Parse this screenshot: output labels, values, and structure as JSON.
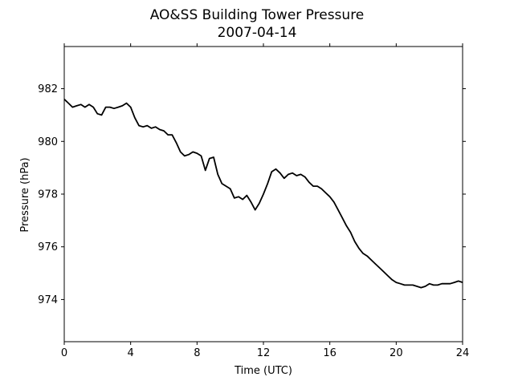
{
  "chart_data": {
    "type": "line",
    "title": "AO&SS Building Tower Pressure",
    "subtitle": "2007-04-14",
    "xlabel": "Time (UTC)",
    "ylabel": "Pressure (hPa)",
    "xlim": [
      0,
      24
    ],
    "ylim": [
      972.4,
      983.6
    ],
    "xticks": [
      0,
      4,
      8,
      12,
      16,
      20,
      24
    ],
    "yticks": [
      974,
      976,
      978,
      980,
      982
    ],
    "grid": false,
    "line_color": "#000000",
    "series": [
      {
        "x": [
          0,
          0.25,
          0.5,
          0.75,
          1.0,
          1.25,
          1.5,
          1.75,
          2.0,
          2.25,
          2.5,
          2.75,
          3.0,
          3.25,
          3.5,
          3.75,
          4.0,
          4.25,
          4.5,
          4.75,
          5.0,
          5.25,
          5.5,
          5.75,
          6.0,
          6.25,
          6.5,
          6.75,
          7.0,
          7.25,
          7.5,
          7.75,
          8.0,
          8.25,
          8.5,
          8.75,
          9.0,
          9.25,
          9.5,
          9.75,
          10.0,
          10.25,
          10.5,
          10.75,
          11.0,
          11.25,
          11.5,
          11.75,
          12.0,
          12.25,
          12.5,
          12.75,
          13.0,
          13.25,
          13.5,
          13.75,
          14.0,
          14.25,
          14.5,
          14.75,
          15.0,
          15.25,
          15.5,
          15.75,
          16.0,
          16.25,
          16.5,
          16.75,
          17.0,
          17.25,
          17.5,
          17.75,
          18.0,
          18.25,
          18.5,
          18.75,
          19.0,
          19.25,
          19.5,
          19.75,
          20.0,
          20.25,
          20.5,
          20.75,
          21.0,
          21.25,
          21.5,
          21.75,
          22.0,
          22.25,
          22.5,
          22.75,
          23.0,
          23.25,
          23.5,
          23.75,
          24.0
        ],
        "values": [
          981.6,
          981.45,
          981.3,
          981.35,
          981.4,
          981.3,
          981.4,
          981.3,
          981.05,
          981.0,
          981.3,
          981.3,
          981.25,
          981.3,
          981.35,
          981.45,
          981.3,
          980.9,
          980.6,
          980.55,
          980.6,
          980.5,
          980.55,
          980.45,
          980.4,
          980.25,
          980.25,
          979.95,
          979.6,
          979.45,
          979.5,
          979.6,
          979.55,
          979.45,
          978.9,
          979.35,
          979.4,
          978.75,
          978.4,
          978.3,
          978.2,
          977.85,
          977.9,
          977.8,
          977.95,
          977.7,
          977.4,
          977.65,
          978.0,
          978.4,
          978.85,
          978.95,
          978.8,
          978.6,
          978.75,
          978.8,
          978.7,
          978.75,
          978.65,
          978.45,
          978.3,
          978.3,
          978.2,
          978.05,
          977.9,
          977.7,
          977.4,
          977.1,
          976.8,
          976.55,
          976.2,
          975.95,
          975.75,
          975.65,
          975.5,
          975.35,
          975.2,
          975.05,
          974.9,
          974.75,
          974.65,
          974.6,
          974.55,
          974.55,
          974.55,
          974.5,
          974.45,
          974.5,
          974.6,
          974.55,
          974.55,
          974.6,
          974.6,
          974.6,
          974.65,
          974.7,
          974.65
        ]
      }
    ]
  }
}
